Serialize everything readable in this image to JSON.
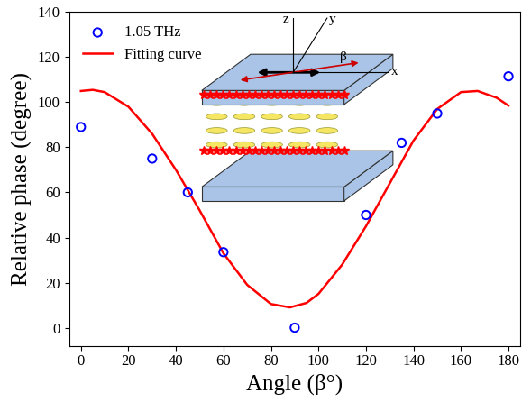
{
  "chart_data": {
    "type": "scatter",
    "x_label": "Angle (β°)",
    "y_label": "Relative phase (degree)",
    "series": [
      {
        "name": "1.05 THz",
        "type": "scatter",
        "color": "#0000ff",
        "marker": "o",
        "x": [
          0,
          30,
          45,
          60,
          90,
          120,
          135,
          150,
          180
        ],
        "values": [
          89,
          75,
          60,
          33.5,
          0,
          50,
          82,
          95,
          111.5
        ]
      },
      {
        "name": "Fitting curve",
        "type": "line",
        "color": "#ff0000",
        "line_style": "solid",
        "x": [
          0,
          5,
          10,
          20,
          30,
          40,
          50,
          60,
          70,
          80,
          88,
          95,
          100,
          110,
          120,
          130,
          140,
          150,
          160,
          167,
          175,
          180
        ],
        "values": [
          105,
          105.5,
          104.5,
          98,
          86,
          70,
          52,
          33,
          19,
          10.5,
          9,
          11,
          15,
          28,
          45,
          64,
          83,
          97,
          104.5,
          105,
          102,
          98.5
        ]
      }
    ],
    "xlim": [
      -5,
      185
    ],
    "xticks": [
      0,
      20,
      40,
      60,
      80,
      100,
      120,
      140,
      160,
      180
    ],
    "ylim": [
      -8,
      140
    ],
    "yticks": [
      0,
      20,
      40,
      60,
      80,
      100,
      120,
      140
    ],
    "legend": "upper left",
    "annotations": [
      "z",
      "y",
      "x",
      "β"
    ]
  }
}
